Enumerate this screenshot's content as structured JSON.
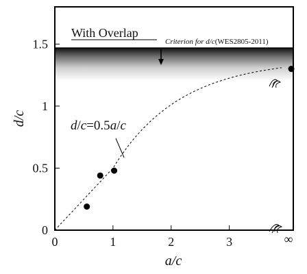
{
  "chart_data": {
    "type": "scatter",
    "xlabel": "a/c",
    "ylabel": "d/c",
    "xlim": [
      0,
      4.1
    ],
    "ylim": [
      0,
      1.8
    ],
    "x_ticks": [
      "0",
      "1",
      "2",
      "3",
      "∞"
    ],
    "y_ticks": [
      "0",
      "0.5",
      "1",
      "1.5"
    ],
    "grid": false,
    "points": [
      {
        "x": 0.55,
        "y": 0.19
      },
      {
        "x": 0.78,
        "y": 0.44
      },
      {
        "x": 1.02,
        "y": 0.48
      },
      {
        "x": "∞",
        "y": 1.3
      }
    ],
    "curve_label": "d/c=0.5a/c",
    "criterion_label": "Criterion for d/c(WES2805-2011)",
    "criterion_level": 1.5,
    "region_label": "With Overlap"
  },
  "colors": {
    "points": "#000000",
    "axes": "#000000",
    "band_top": "#1a1a1a",
    "band_bottom": "#ffffff"
  }
}
